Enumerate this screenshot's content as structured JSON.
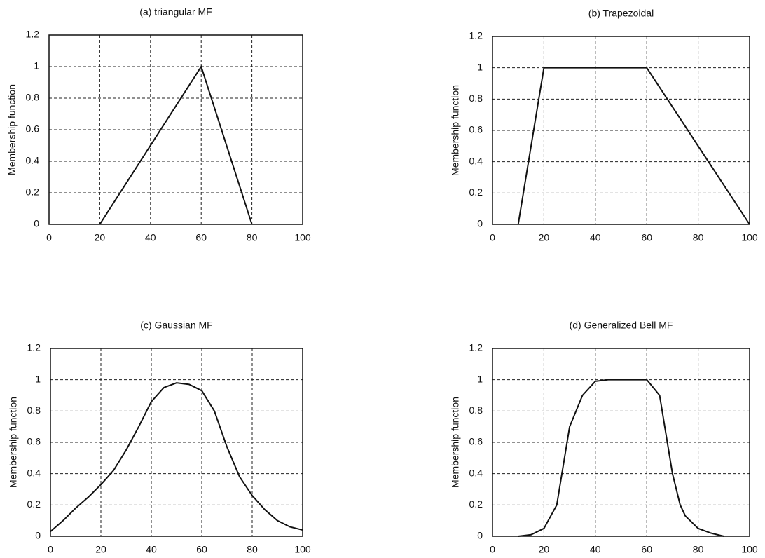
{
  "chart_data": [
    {
      "type": "line",
      "title": "(a) triangular MF",
      "y_label": "Membership function",
      "x": [
        20,
        60,
        80
      ],
      "values": [
        0,
        1,
        0
      ],
      "color": "#111111",
      "xlim": [
        0,
        100
      ],
      "ylim": [
        0,
        1.2
      ],
      "xticks": [
        0,
        20,
        40,
        60,
        80,
        100
      ],
      "yticks": [
        0,
        0.2,
        0.4,
        0.6,
        0.8,
        1,
        1.2
      ],
      "grid": true
    },
    {
      "type": "line",
      "title": "(b) Trapezoidal",
      "y_label": "Membership function",
      "x": [
        10,
        20,
        60,
        100
      ],
      "values": [
        0,
        1,
        1,
        0
      ],
      "color": "#111111",
      "xlim": [
        0,
        100
      ],
      "ylim": [
        0,
        1.2
      ],
      "xticks": [
        0,
        20,
        40,
        60,
        80,
        100
      ],
      "yticks": [
        0,
        0.2,
        0.4,
        0.6,
        0.8,
        1,
        1.2
      ],
      "grid": true
    },
    {
      "type": "line",
      "title": "(c) Gaussian MF",
      "y_label": "Membership function",
      "x": [
        0,
        5,
        10,
        15,
        20,
        25,
        30,
        35,
        40,
        45,
        50,
        55,
        60,
        65,
        70,
        75,
        80,
        85,
        90,
        95,
        100
      ],
      "values": [
        0.03,
        0.1,
        0.18,
        0.25,
        0.33,
        0.42,
        0.55,
        0.7,
        0.86,
        0.95,
        0.98,
        0.97,
        0.93,
        0.8,
        0.57,
        0.38,
        0.26,
        0.17,
        0.1,
        0.06,
        0.04
      ],
      "color": "#111111",
      "xlim": [
        0,
        100
      ],
      "ylim": [
        0,
        1.2
      ],
      "xticks": [
        0,
        20,
        40,
        60,
        80,
        100
      ],
      "yticks": [
        0,
        0.2,
        0.4,
        0.6,
        0.8,
        1,
        1.2
      ],
      "grid": true
    },
    {
      "type": "line",
      "title": "(d) Generalized Bell MF",
      "y_label": "Membership function",
      "x": [
        10,
        15,
        20,
        25,
        27,
        30,
        35,
        40,
        45,
        50,
        55,
        60,
        65,
        67,
        70,
        73,
        75,
        80,
        85,
        90
      ],
      "values": [
        0,
        0.01,
        0.05,
        0.2,
        0.4,
        0.7,
        0.9,
        0.99,
        1,
        1,
        1,
        1,
        0.9,
        0.7,
        0.4,
        0.2,
        0.13,
        0.05,
        0.02,
        0
      ],
      "color": "#111111",
      "xlim": [
        0,
        100
      ],
      "ylim": [
        0,
        1.2
      ],
      "xticks": [
        0,
        20,
        40,
        60,
        80,
        100
      ],
      "yticks": [
        0,
        0.2,
        0.4,
        0.6,
        0.8,
        1,
        1.2
      ],
      "grid": true
    }
  ]
}
